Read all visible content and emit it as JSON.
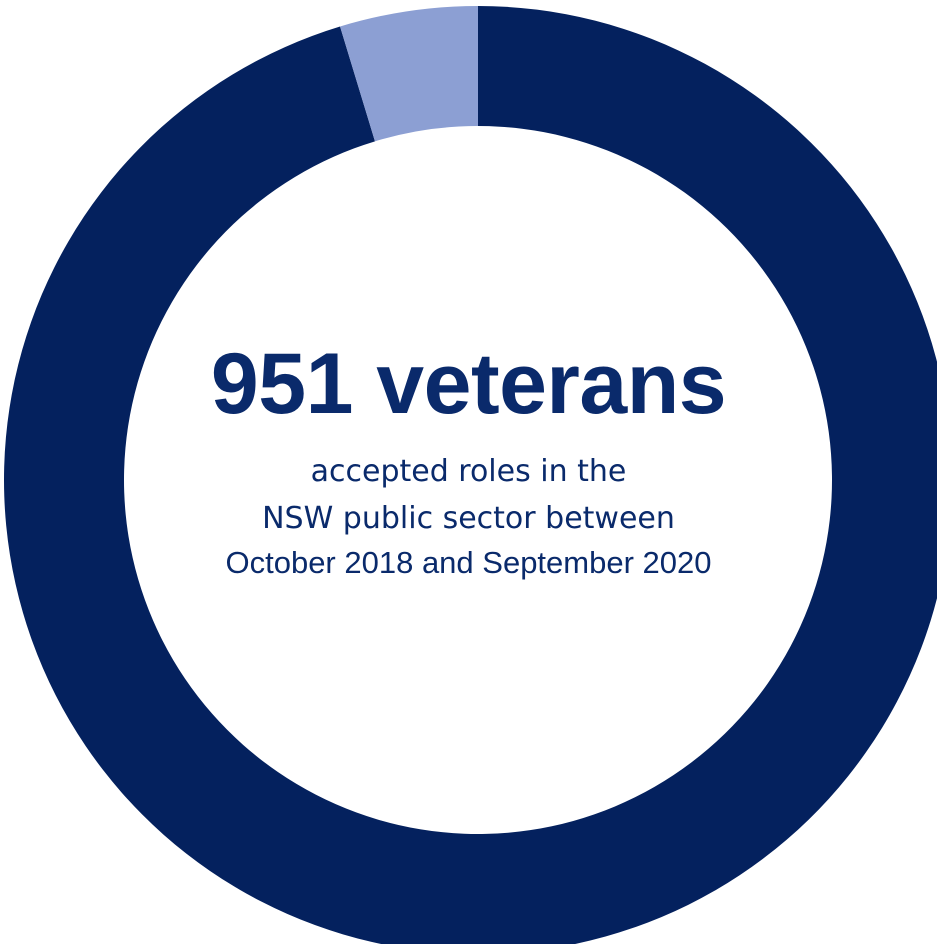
{
  "chart_data": {
    "type": "pie",
    "style": "donut",
    "segments": [
      {
        "name": "",
        "value": 95.3,
        "color": "#04215e"
      },
      {
        "name": "",
        "value": 4.7,
        "color": "#8c9fd3"
      }
    ],
    "start_angle_deg": 0,
    "direction": "clockwise"
  },
  "center": {
    "headline": "951 veterans",
    "line1": "accepted roles in the",
    "line2": "NSW public sector between",
    "line3": "October 2018 and September 2020"
  },
  "colors": {
    "text": "#0a2a6b",
    "primary": "#04215e",
    "accent_light": "#8c9fd3",
    "background": "#ffffff"
  }
}
